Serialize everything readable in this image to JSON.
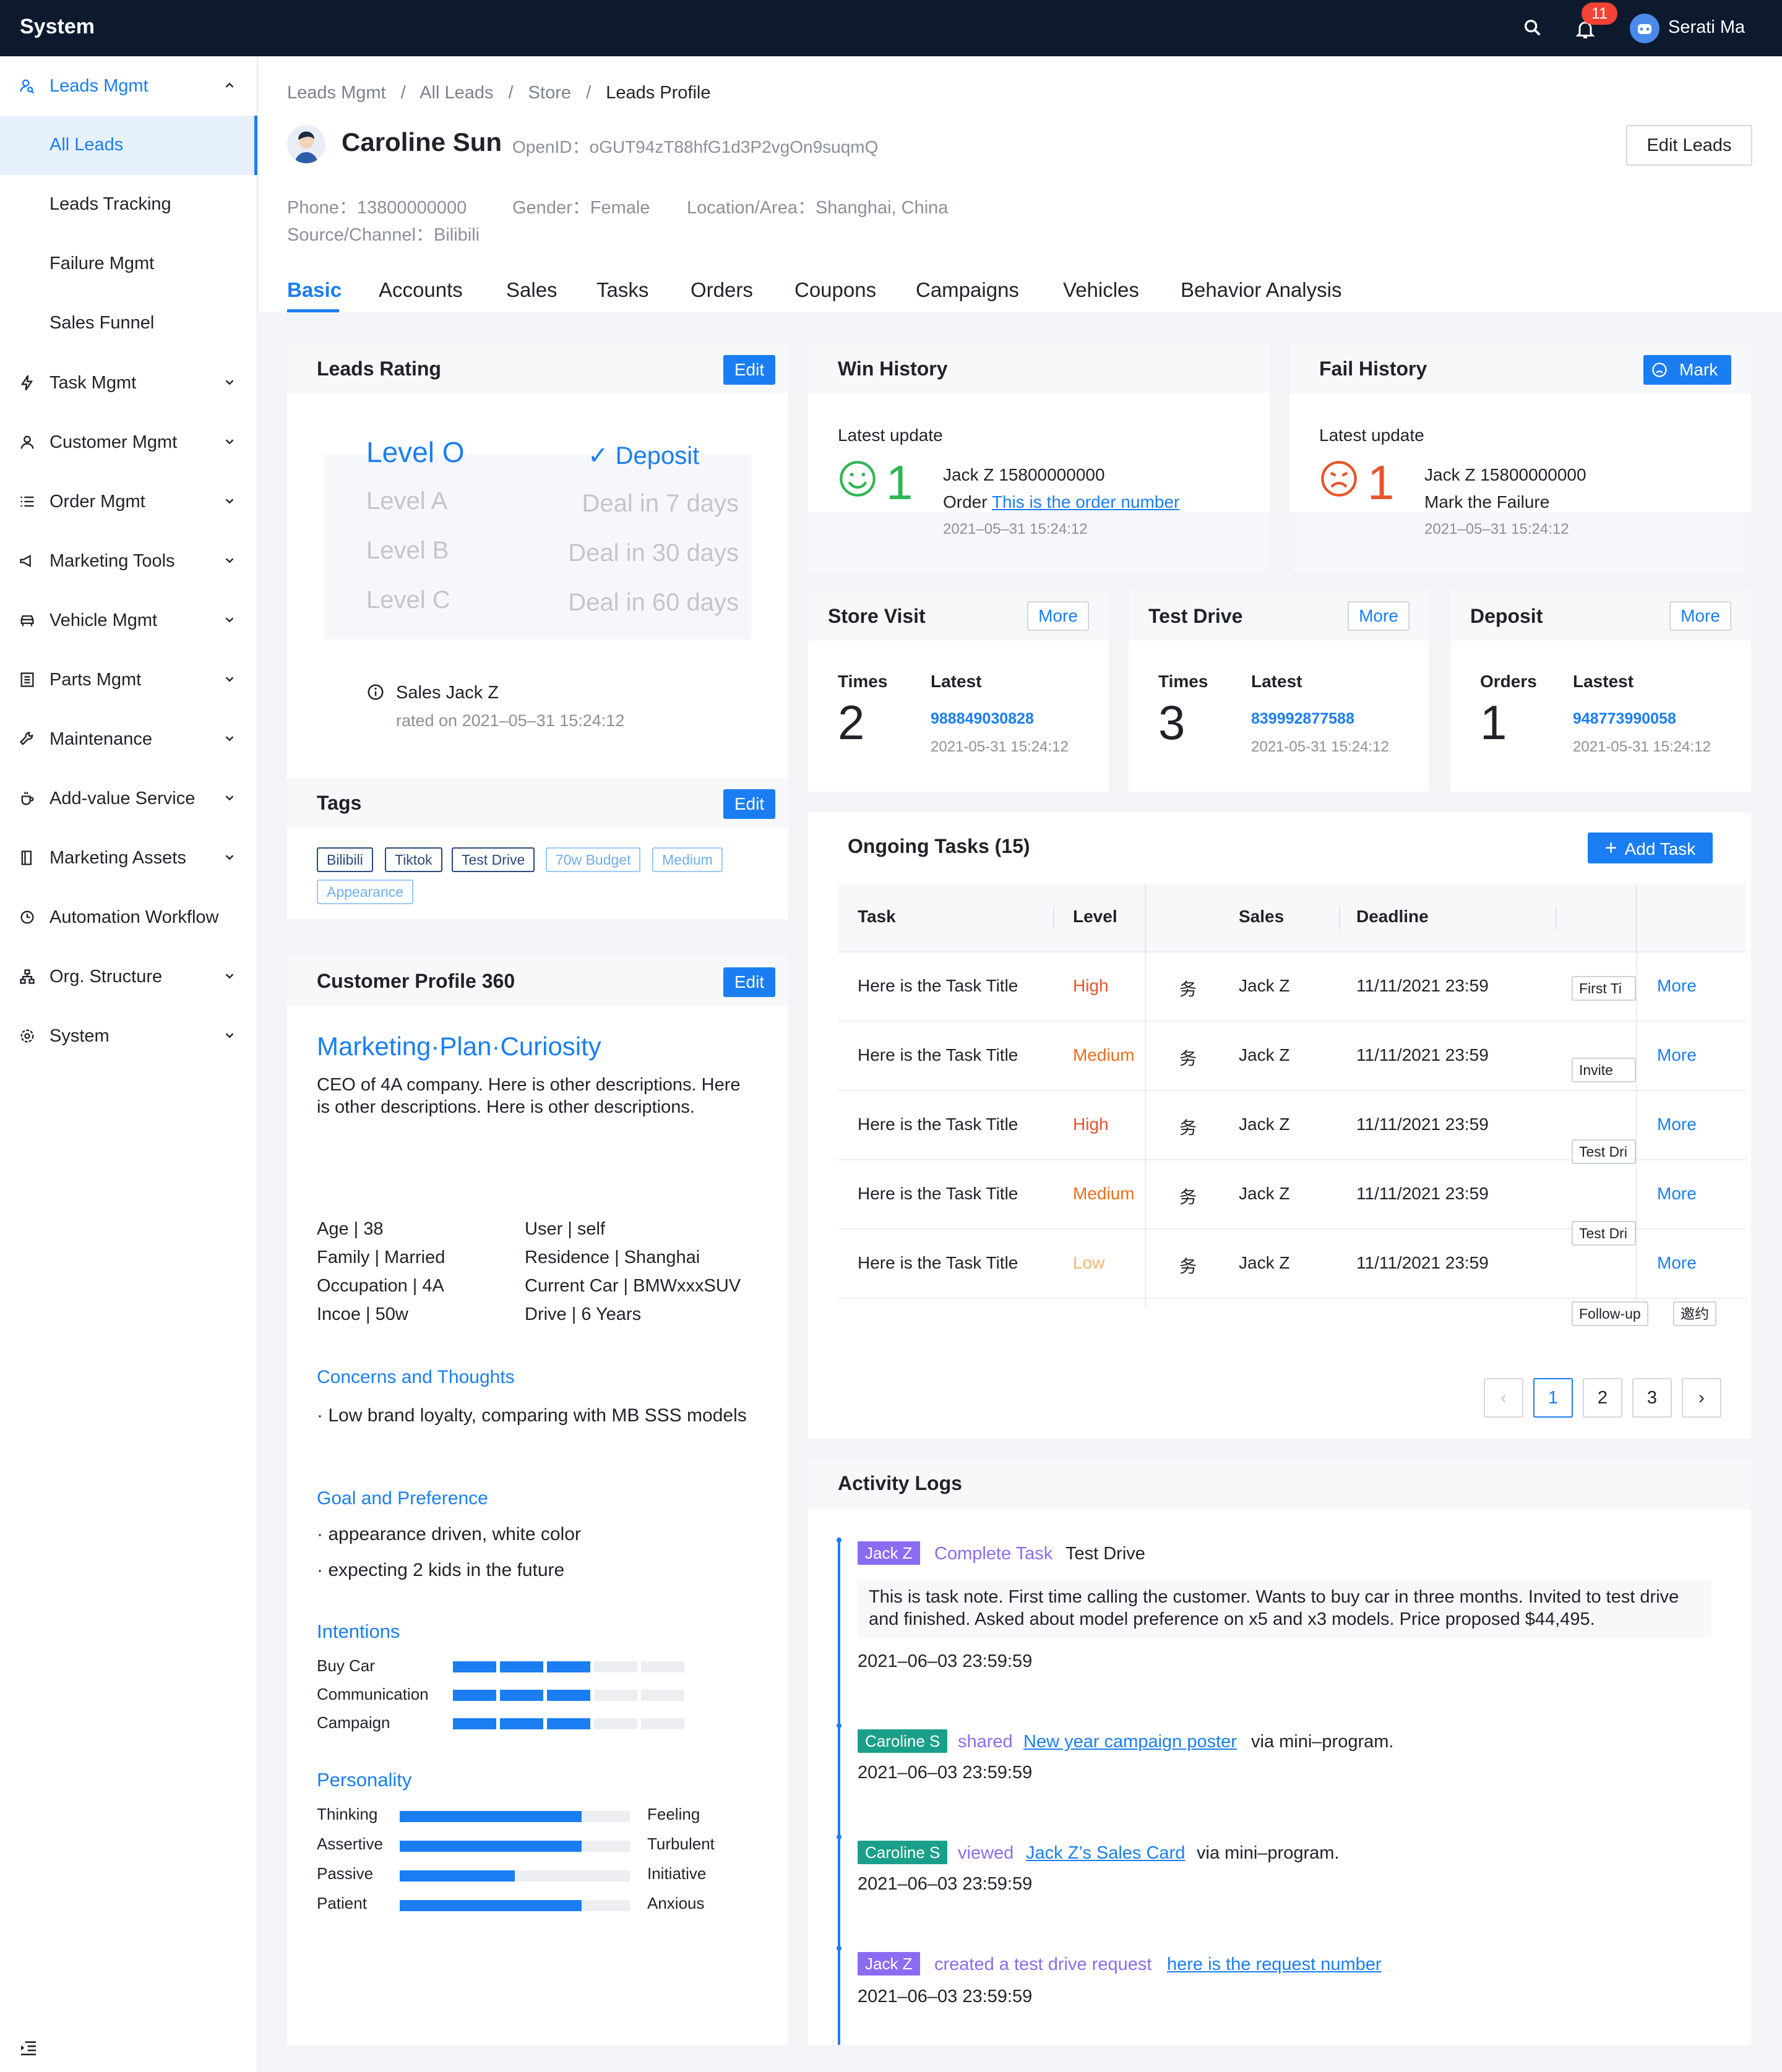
{
  "app": {
    "title": "System",
    "notifications": "11",
    "user_name": "Serati Ma"
  },
  "sidebar": {
    "items": [
      {
        "label": "Leads Mgmt",
        "icon": "user-search-icon",
        "expanded": true
      },
      {
        "label": "All Leads",
        "active": true
      },
      {
        "label": "Leads Tracking"
      },
      {
        "label": "Failure Mgmt"
      },
      {
        "label": "Sales Funnel"
      },
      {
        "label": "Task Mgmt",
        "icon": "bolt-icon"
      },
      {
        "label": "Customer Mgmt",
        "icon": "person-icon"
      },
      {
        "label": "Order Mgmt",
        "icon": "list-icon"
      },
      {
        "label": "Marketing Tools",
        "icon": "megaphone-icon"
      },
      {
        "label": "Vehicle Mgmt",
        "icon": "car-icon"
      },
      {
        "label": "Parts Mgmt",
        "icon": "grid-icon"
      },
      {
        "label": "Maintenance",
        "icon": "wrench-icon"
      },
      {
        "label": "Add-value Service",
        "icon": "cup-icon"
      },
      {
        "label": "Marketing Assets",
        "icon": "book-icon"
      },
      {
        "label": "Automation Workflow",
        "icon": "clock-icon"
      },
      {
        "label": "Org. Structure",
        "icon": "org-icon"
      },
      {
        "label": "System",
        "icon": "gear-icon"
      }
    ]
  },
  "breadcrumb": {
    "items": [
      "Leads Mgmt",
      "All Leads",
      "Store"
    ],
    "current": "Leads Profile",
    "sep": "/"
  },
  "profile": {
    "name": "Caroline Sun",
    "openid": "OpenID：oGUT94zT88hfG1d3P2vgOn9suqmQ",
    "phone": "Phone：13800000000",
    "gender": "Gender：Female",
    "location": "Location/Area：Shanghai, China",
    "source": "Source/Channel：Bilibili",
    "edit_label": "Edit Leads"
  },
  "tabs": [
    "Basic",
    "Accounts",
    "Sales",
    "Tasks",
    "Orders",
    "Coupons",
    "Campaigns",
    "Vehicles",
    "Behavior Analysis"
  ],
  "rating": {
    "title": "Leads Rating",
    "edit": "Edit",
    "levels": [
      {
        "level": "Level O",
        "desc": "Deposit",
        "check": "✓"
      },
      {
        "level": "Level A",
        "desc": "Deal in 7 days"
      },
      {
        "level": "Level B",
        "desc": "Deal in 30 days"
      },
      {
        "level": "Level C",
        "desc": "Deal in 60 days"
      }
    ],
    "rated_by": "Sales Jack Z",
    "rated_on": "rated on 2021–05–31 15:24:12"
  },
  "tags": {
    "title": "Tags",
    "edit": "Edit",
    "items": [
      "Bilibili",
      "Tiktok",
      "Test Drive",
      "70w Budget",
      "Medium",
      "Appearance"
    ]
  },
  "profile360": {
    "title": "Customer Profile 360",
    "edit": "Edit",
    "headline": "Marketing·Plan·Curiosity",
    "desc": "CEO of 4A company. Here is other descriptions. Here is other descriptions. Here is other descriptions.",
    "facts_left": [
      "Age | 38",
      "Family | Married",
      "Occupation | 4A",
      "Incoe | 50w"
    ],
    "facts_right": [
      "User | self",
      "Residence | Shanghai",
      "Current Car | BMWxxxSUV",
      "Drive | 6 Years"
    ],
    "concerns_title": "Concerns and Thoughts",
    "concerns": [
      "· Low brand loyalty, comparing with MB SSS models"
    ],
    "goal_title": "Goal and Preference",
    "goals": [
      "· appearance driven, white color",
      "· expecting 2 kids in the future"
    ],
    "intentions_title": "Intentions",
    "intentions": [
      {
        "label": "Buy Car",
        "level": 3,
        "max": 5
      },
      {
        "label": "Communication",
        "level": 3,
        "max": 5
      },
      {
        "label": "Campaign",
        "level": 3,
        "max": 5
      }
    ],
    "personality_title": "Personality",
    "personality": [
      {
        "left": "Thinking",
        "right": "Feeling",
        "value": 0.79
      },
      {
        "left": "Assertive",
        "right": "Turbulent",
        "value": 0.79
      },
      {
        "left": "Passive",
        "right": "Initiative",
        "value": 0.5
      },
      {
        "left": "Patient",
        "right": "Anxious",
        "value": 0.79
      }
    ]
  },
  "win": {
    "title": "Win History",
    "latest": "Latest update",
    "count": "1",
    "who": "Jack Z 15800000000",
    "order_prefix": "Order",
    "order_link": "This is the order number",
    "time": "2021–05–31 15:24:12"
  },
  "fail": {
    "title": "Fail History",
    "mark": "Mark",
    "latest": "Latest update",
    "count": "1",
    "who": "Jack Z 15800000000",
    "note": "Mark the Failure",
    "time": "2021–05–31 15:24:12"
  },
  "store_visit": {
    "title": "Store Visit",
    "more": "More",
    "col1": "Times",
    "col2": "Latest",
    "value": "2",
    "link": "988849030828",
    "time": "2021-05-31 15:24:12"
  },
  "test_drive": {
    "title": "Test Drive",
    "more": "More",
    "col1": "Times",
    "col2": "Latest",
    "value": "3",
    "link": "839992877588",
    "time": "2021-05-31 15:24:12"
  },
  "deposit": {
    "title": "Deposit",
    "more": "More",
    "col1": "Orders",
    "col2": "Lastest",
    "value": "1",
    "link": "948773990058",
    "time": "2021-05-31 15:24:12"
  },
  "tasks": {
    "title": "Ongoing Tasks (15)",
    "add": "Add Task",
    "headers": [
      "Task",
      "Level",
      "Sales",
      "Deadline"
    ],
    "rows": [
      {
        "task": "Here is the Task Title",
        "level": "High",
        "type": "务",
        "sales": "Jack Z",
        "deadline": "11/11/2021 23:59",
        "action": "First Ti",
        "more": "More"
      },
      {
        "task": "Here is the Task Title",
        "level": "Medium",
        "type": "务",
        "sales": "Jack Z",
        "deadline": "11/11/2021 23:59",
        "action": "Invite",
        "more": "More"
      },
      {
        "task": "Here is the Task Title",
        "level": "High",
        "type": "务",
        "sales": "Jack Z",
        "deadline": "11/11/2021 23:59",
        "action": "Test Dri",
        "more": "More"
      },
      {
        "task": "Here is the Task Title",
        "level": "Medium",
        "type": "务",
        "sales": "Jack Z",
        "deadline": "11/11/2021 23:59",
        "action": "Test Dri",
        "more": "More"
      },
      {
        "task": "Here is the Task Title",
        "level": "Low",
        "type": "务",
        "sales": "Jack Z",
        "deadline": "11/11/2021 23:59",
        "action": "Follow-up",
        "action2": "邀约",
        "more": "More"
      }
    ],
    "pages": [
      "1",
      "2",
      "3"
    ],
    "current_page": "1",
    "prev": "‹",
    "next": "›",
    "level_colors": {
      "High": "#e8542a",
      "Medium": "#e8701a",
      "Low": "#f5b56a"
    }
  },
  "activity": {
    "title": "Activity Logs",
    "logs": [
      {
        "actor": "Jack Z",
        "actor_color": "#8a6cf2",
        "verb": "Complete Task",
        "object": "Test Drive",
        "note": "This is task note. First time calling the customer. Wants to buy car in three months. Invited to test drive and finished. Asked about model preference on x5 and x3 models. Price proposed $44,495.",
        "time": "2021–06–03 23:59:59"
      },
      {
        "actor": "Caroline S",
        "actor_color": "#1aa08a",
        "verb": "shared",
        "link": "New year campaign poster",
        "suffix": "via mini–program.",
        "time": "2021–06–03 23:59:59"
      },
      {
        "actor": "Caroline S",
        "actor_color": "#1aa08a",
        "verb": "viewed",
        "link": "Jack Z’s Sales Card",
        "suffix": "via mini–program.",
        "time": "2021–06–03 23:59:59"
      },
      {
        "actor": "Jack Z",
        "actor_color": "#8a6cf2",
        "verb": "created a test drive request",
        "link": "here is the request number",
        "time": "2021–06–03 23:59:59"
      }
    ]
  }
}
